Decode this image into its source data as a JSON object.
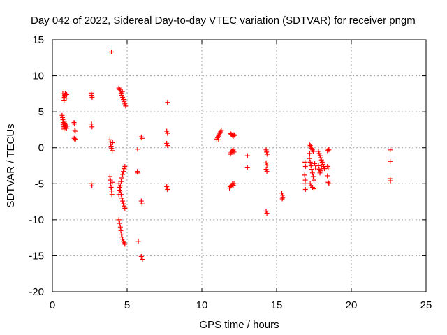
{
  "chart_data": {
    "type": "scatter",
    "title": "Day 042 of 2022, Sidereal Day-to-day VTEC variation (SDTVAR) for receiver pngm",
    "xlabel": "GPS time / hours",
    "ylabel": "SDTVAR / TECUs",
    "xlim": [
      0,
      25
    ],
    "ylim": [
      -20,
      15
    ],
    "xticks": [
      0,
      5,
      10,
      15,
      20,
      25
    ],
    "yticks": [
      -20,
      -15,
      -10,
      -5,
      0,
      5,
      10,
      15
    ],
    "xtick_labels": [
      "0",
      "5",
      "10",
      "15",
      "20",
      "25"
    ],
    "ytick_labels": [
      "-20",
      "-15",
      "-10",
      "-5",
      "0",
      "5",
      "10",
      "15"
    ],
    "grid": true,
    "marker": "+",
    "color": "#ff0000",
    "series": [
      {
        "name": "SDTVAR",
        "points": [
          [
            0.7,
            7.5
          ],
          [
            0.72,
            7.2
          ],
          [
            0.75,
            6.9
          ],
          [
            0.78,
            6.6
          ],
          [
            0.8,
            7.0
          ],
          [
            0.83,
            7.3
          ],
          [
            0.86,
            7.5
          ],
          [
            0.9,
            7.2
          ],
          [
            0.93,
            6.9
          ],
          [
            0.96,
            7.4
          ],
          [
            0.65,
            4.5
          ],
          [
            0.68,
            4.2
          ],
          [
            0.7,
            3.9
          ],
          [
            0.72,
            3.5
          ],
          [
            0.74,
            3.2
          ],
          [
            0.76,
            2.9
          ],
          [
            0.78,
            2.6
          ],
          [
            0.8,
            3.0
          ],
          [
            0.83,
            3.4
          ],
          [
            0.86,
            3.1
          ],
          [
            0.89,
            2.8
          ],
          [
            0.92,
            3.3
          ],
          [
            0.95,
            2.7
          ],
          [
            0.98,
            3.0
          ],
          [
            1.45,
            3.5
          ],
          [
            1.48,
            3.3
          ],
          [
            1.5,
            2.4
          ],
          [
            1.53,
            2.3
          ],
          [
            1.46,
            1.3
          ],
          [
            1.5,
            1.1
          ],
          [
            1.55,
            1.2
          ],
          [
            2.6,
            7.6
          ],
          [
            2.63,
            7.3
          ],
          [
            2.66,
            7.0
          ],
          [
            2.62,
            3.3
          ],
          [
            2.65,
            2.9
          ],
          [
            2.6,
            -5.0
          ],
          [
            2.65,
            -5.3
          ],
          [
            3.95,
            13.3
          ],
          [
            3.85,
            1.1
          ],
          [
            3.88,
            0.8
          ],
          [
            3.9,
            0.5
          ],
          [
            3.93,
            0.2
          ],
          [
            3.96,
            -0.1
          ],
          [
            4.0,
            -0.4
          ],
          [
            4.03,
            0.7
          ],
          [
            3.85,
            -4.0
          ],
          [
            3.88,
            -4.5
          ],
          [
            3.9,
            -5.0
          ],
          [
            3.93,
            -5.5
          ],
          [
            3.96,
            -6.0
          ],
          [
            3.98,
            -6.5
          ],
          [
            4.0,
            -4.8
          ],
          [
            4.45,
            8.3
          ],
          [
            4.5,
            8.1
          ],
          [
            4.55,
            7.9
          ],
          [
            4.6,
            7.6
          ],
          [
            4.65,
            7.3
          ],
          [
            4.7,
            7.0
          ],
          [
            4.75,
            6.7
          ],
          [
            4.8,
            6.4
          ],
          [
            4.85,
            6.1
          ],
          [
            4.9,
            5.8
          ],
          [
            4.68,
            7.8
          ],
          [
            4.78,
            6.9
          ],
          [
            4.45,
            -6.5
          ],
          [
            4.5,
            -5.9
          ],
          [
            4.55,
            -5.3
          ],
          [
            4.6,
            -4.7
          ],
          [
            4.65,
            -4.2
          ],
          [
            4.7,
            -3.7
          ],
          [
            4.75,
            -3.3
          ],
          [
            4.8,
            -2.9
          ],
          [
            4.85,
            -2.6
          ],
          [
            4.45,
            -5.0
          ],
          [
            4.5,
            -5.5
          ],
          [
            4.55,
            -6.0
          ],
          [
            4.6,
            -6.5
          ],
          [
            4.65,
            -7.0
          ],
          [
            4.7,
            -7.4
          ],
          [
            4.75,
            -7.8
          ],
          [
            4.8,
            -8.1
          ],
          [
            4.85,
            -8.4
          ],
          [
            4.45,
            -10.0
          ],
          [
            4.5,
            -10.5
          ],
          [
            4.55,
            -11.0
          ],
          [
            4.58,
            -11.5
          ],
          [
            4.62,
            -12.0
          ],
          [
            4.66,
            -12.4
          ],
          [
            4.7,
            -12.7
          ],
          [
            4.75,
            -13.0
          ],
          [
            4.8,
            -13.2
          ],
          [
            4.85,
            -13.4
          ],
          [
            5.7,
            -0.2
          ],
          [
            5.68,
            -3.3
          ],
          [
            5.72,
            -3.5
          ],
          [
            5.75,
            -13.0
          ],
          [
            5.95,
            1.5
          ],
          [
            6.0,
            1.3
          ],
          [
            5.95,
            -7.4
          ],
          [
            6.0,
            -7.8
          ],
          [
            5.95,
            -15.1
          ],
          [
            6.02,
            -15.5
          ],
          [
            7.7,
            6.3
          ],
          [
            7.65,
            2.3
          ],
          [
            7.7,
            2.0
          ],
          [
            7.65,
            0.6
          ],
          [
            7.7,
            0.3
          ],
          [
            7.65,
            -5.4
          ],
          [
            7.7,
            -5.8
          ],
          [
            11.0,
            1.2
          ],
          [
            11.05,
            1.4
          ],
          [
            11.1,
            1.6
          ],
          [
            11.15,
            1.8
          ],
          [
            11.2,
            2.0
          ],
          [
            11.25,
            2.2
          ],
          [
            11.3,
            2.4
          ],
          [
            11.12,
            1.1
          ],
          [
            11.9,
            2.0
          ],
          [
            11.95,
            1.9
          ],
          [
            12.0,
            1.8
          ],
          [
            12.05,
            1.7
          ],
          [
            12.1,
            1.6
          ],
          [
            12.15,
            1.8
          ],
          [
            12.2,
            1.7
          ],
          [
            11.9,
            -0.9
          ],
          [
            11.95,
            -0.7
          ],
          [
            12.0,
            -0.5
          ],
          [
            12.05,
            -0.4
          ],
          [
            12.1,
            -0.3
          ],
          [
            12.15,
            -0.6
          ],
          [
            11.85,
            -5.6
          ],
          [
            11.9,
            -5.4
          ],
          [
            11.95,
            -5.3
          ],
          [
            12.0,
            -5.2
          ],
          [
            12.05,
            -5.0
          ],
          [
            12.1,
            -5.2
          ],
          [
            12.15,
            -5.0
          ],
          [
            13.05,
            -1.1
          ],
          [
            13.05,
            -2.7
          ],
          [
            14.3,
            -0.3
          ],
          [
            14.33,
            -0.6
          ],
          [
            14.36,
            -0.9
          ],
          [
            14.3,
            -2.1
          ],
          [
            14.35,
            -2.4
          ],
          [
            14.3,
            -3.0
          ],
          [
            14.35,
            -3.3
          ],
          [
            14.3,
            -8.8
          ],
          [
            14.35,
            -9.1
          ],
          [
            15.35,
            -6.3
          ],
          [
            15.4,
            -6.6
          ],
          [
            15.42,
            -6.9
          ],
          [
            15.38,
            -7.1
          ],
          [
            16.9,
            -2.0
          ],
          [
            16.93,
            -2.6
          ],
          [
            16.88,
            -3.8
          ],
          [
            16.92,
            -4.5
          ],
          [
            16.9,
            -5.0
          ],
          [
            16.93,
            -5.8
          ],
          [
            17.2,
            0.5
          ],
          [
            17.25,
            0.3
          ],
          [
            17.3,
            0.1
          ],
          [
            17.35,
            -0.1
          ],
          [
            17.4,
            -0.3
          ],
          [
            17.45,
            -0.5
          ],
          [
            17.22,
            -0.8
          ],
          [
            17.2,
            -1.5
          ],
          [
            17.25,
            -2.0
          ],
          [
            17.3,
            -2.5
          ],
          [
            17.35,
            -3.0
          ],
          [
            17.4,
            -3.5
          ],
          [
            17.45,
            -4.0
          ],
          [
            17.5,
            -4.5
          ],
          [
            17.55,
            -2.2
          ],
          [
            17.6,
            -2.8
          ],
          [
            17.25,
            -5.0
          ],
          [
            17.3,
            -5.3
          ],
          [
            17.4,
            -5.5
          ],
          [
            17.5,
            -5.7
          ],
          [
            17.8,
            -0.5
          ],
          [
            17.85,
            -0.8
          ],
          [
            17.9,
            -1.1
          ],
          [
            17.95,
            -1.4
          ],
          [
            18.0,
            -1.7
          ],
          [
            18.05,
            -2.0
          ],
          [
            18.1,
            -2.3
          ],
          [
            18.15,
            -2.6
          ],
          [
            18.2,
            -2.9
          ],
          [
            17.8,
            -2.5
          ],
          [
            17.85,
            -3.0
          ],
          [
            17.9,
            -3.5
          ],
          [
            17.95,
            -3.2
          ],
          [
            18.0,
            -2.8
          ],
          [
            18.4,
            -0.4
          ],
          [
            18.45,
            -0.2
          ],
          [
            18.5,
            -0.3
          ],
          [
            18.4,
            -2.6
          ],
          [
            18.45,
            -2.8
          ],
          [
            18.4,
            -3.9
          ],
          [
            18.45,
            -4.8
          ],
          [
            18.5,
            -5.0
          ],
          [
            22.6,
            -0.3
          ],
          [
            22.6,
            -1.9
          ],
          [
            22.6,
            -4.3
          ],
          [
            22.62,
            -4.6
          ]
        ]
      }
    ]
  }
}
